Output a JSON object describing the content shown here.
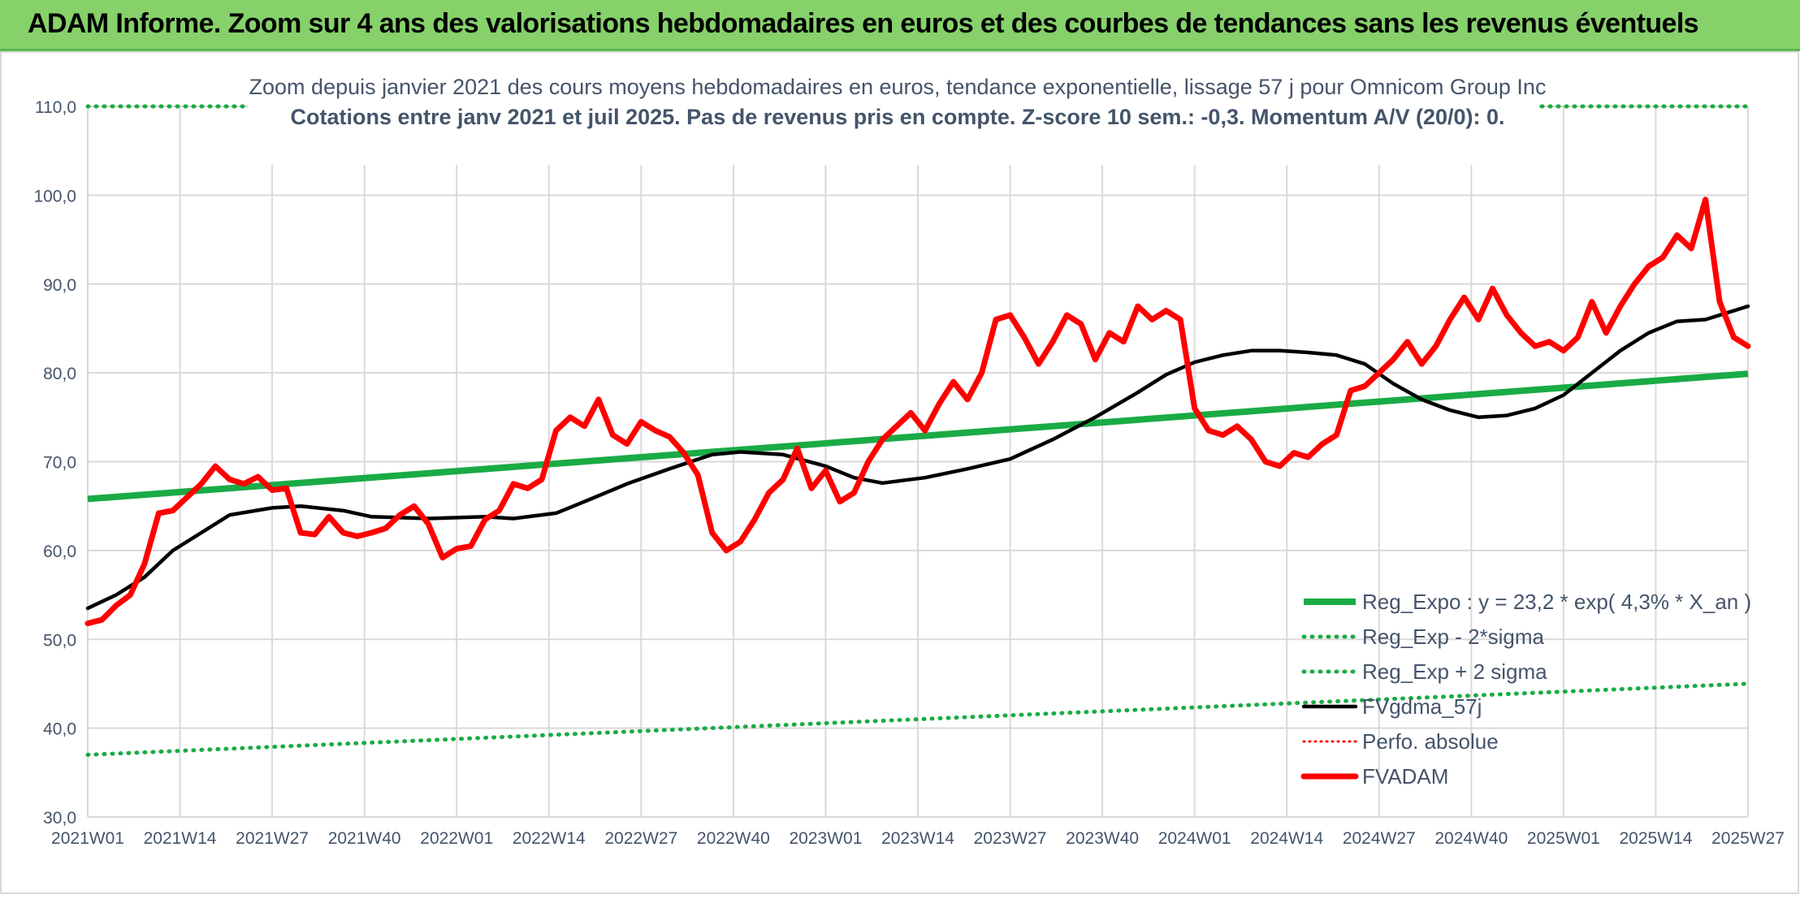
{
  "banner": {
    "title": "ADAM Informe. Zoom sur 4 ans des valorisations hebdomadaires en euros et des courbes de tendances sans les revenus éventuels"
  },
  "colors": {
    "banner": "#86d16a",
    "reg_expo": "#1aab45",
    "fvgdma": "#000000",
    "fvadam": "#ff0000",
    "grid": "#d9d9d9",
    "text": "#44546a"
  },
  "chart_data": {
    "type": "line",
    "title": "Zoom depuis janvier 2021 des cours moyens hebdomadaires en euros, tendance exponentielle, lissage 57 j pour Omnicom Group Inc",
    "subtitle": "Cotations entre janv 2021 et juil 2025. Pas de revenus pris en compte. Z-score 10 sem.: -0,3. Momentum A/V (20/0): 0.",
    "ylim": [
      30,
      110
    ],
    "yticks": [
      "30,0",
      "40,0",
      "50,0",
      "60,0",
      "70,0",
      "80,0",
      "90,0",
      "100,0",
      "110,0"
    ],
    "xticks": [
      "2021W01",
      "2021W14",
      "2021W27",
      "2021W40",
      "2022W01",
      "2022W14",
      "2022W27",
      "2022W40",
      "2023W01",
      "2023W14",
      "2023W27",
      "2023W40",
      "2024W01",
      "2024W14",
      "2024W27",
      "2024W40",
      "2025W01",
      "2025W14",
      "2025W27"
    ],
    "x_count": 235,
    "grid": true,
    "legend_position": "bottom-right",
    "series": [
      {
        "name": "Reg_Expo : y = 23,2 * exp( 4,3% *  X_an )",
        "style": "solid-thick",
        "points": [
          [
            0,
            65.8
          ],
          [
            234,
            79.9
          ]
        ]
      },
      {
        "name": "Reg_Exp - 2*sigma",
        "style": "dotted",
        "points": [
          [
            0,
            37.0
          ],
          [
            234,
            45.0
          ]
        ]
      },
      {
        "name": "Reg_Exp + 2 sigma",
        "style": "dotted",
        "points": [
          [
            0,
            110.0
          ],
          [
            234,
            110.0
          ]
        ]
      },
      {
        "name": "FVgdma_57j",
        "style": "solid",
        "points": [
          [
            0,
            53.5
          ],
          [
            4,
            55.0
          ],
          [
            8,
            57.0
          ],
          [
            12,
            60.0
          ],
          [
            16,
            62.0
          ],
          [
            20,
            64.0
          ],
          [
            26,
            64.8
          ],
          [
            30,
            65.0
          ],
          [
            36,
            64.5
          ],
          [
            40,
            63.8
          ],
          [
            48,
            63.6
          ],
          [
            56,
            63.8
          ],
          [
            60,
            63.6
          ],
          [
            66,
            64.2
          ],
          [
            70,
            65.5
          ],
          [
            76,
            67.5
          ],
          [
            82,
            69.2
          ],
          [
            88,
            70.8
          ],
          [
            92,
            71.1
          ],
          [
            98,
            70.8
          ],
          [
            104,
            69.5
          ],
          [
            108,
            68.2
          ],
          [
            112,
            67.6
          ],
          [
            118,
            68.2
          ],
          [
            124,
            69.2
          ],
          [
            130,
            70.3
          ],
          [
            136,
            72.5
          ],
          [
            142,
            75.0
          ],
          [
            148,
            77.8
          ],
          [
            152,
            79.8
          ],
          [
            156,
            81.2
          ],
          [
            160,
            82.0
          ],
          [
            164,
            82.5
          ],
          [
            168,
            82.5
          ],
          [
            172,
            82.3
          ],
          [
            176,
            82.0
          ],
          [
            180,
            81.0
          ],
          [
            184,
            78.8
          ],
          [
            188,
            77.0
          ],
          [
            192,
            75.8
          ],
          [
            196,
            75.0
          ],
          [
            200,
            75.2
          ],
          [
            204,
            76.0
          ],
          [
            208,
            77.5
          ],
          [
            212,
            80.0
          ],
          [
            216,
            82.5
          ],
          [
            220,
            84.5
          ],
          [
            224,
            85.8
          ],
          [
            228,
            86.0
          ],
          [
            232,
            87.0
          ],
          [
            234,
            87.5
          ]
        ]
      },
      {
        "name": "Perfo. absolue",
        "style": "dotted",
        "points": []
      },
      {
        "name": "FVADAM",
        "style": "solid-thick",
        "points": [
          [
            0,
            51.8
          ],
          [
            2,
            52.2
          ],
          [
            4,
            53.8
          ],
          [
            6,
            55.0
          ],
          [
            8,
            58.5
          ],
          [
            10,
            64.2
          ],
          [
            12,
            64.5
          ],
          [
            14,
            66.0
          ],
          [
            16,
            67.5
          ],
          [
            18,
            69.5
          ],
          [
            20,
            68.0
          ],
          [
            22,
            67.5
          ],
          [
            24,
            68.3
          ],
          [
            26,
            66.8
          ],
          [
            28,
            67.0
          ],
          [
            30,
            62.0
          ],
          [
            32,
            61.8
          ],
          [
            34,
            63.8
          ],
          [
            36,
            62.0
          ],
          [
            38,
            61.6
          ],
          [
            40,
            62.0
          ],
          [
            42,
            62.5
          ],
          [
            44,
            64.0
          ],
          [
            46,
            65.0
          ],
          [
            48,
            63.0
          ],
          [
            50,
            59.2
          ],
          [
            52,
            60.2
          ],
          [
            54,
            60.5
          ],
          [
            56,
            63.5
          ],
          [
            58,
            64.5
          ],
          [
            60,
            67.5
          ],
          [
            62,
            67.0
          ],
          [
            64,
            68.0
          ],
          [
            66,
            73.5
          ],
          [
            68,
            75.0
          ],
          [
            70,
            74.0
          ],
          [
            72,
            77.0
          ],
          [
            74,
            73.0
          ],
          [
            76,
            72.0
          ],
          [
            78,
            74.5
          ],
          [
            80,
            73.5
          ],
          [
            82,
            72.8
          ],
          [
            84,
            71.0
          ],
          [
            86,
            68.5
          ],
          [
            88,
            62.0
          ],
          [
            90,
            60.0
          ],
          [
            92,
            61.0
          ],
          [
            94,
            63.5
          ],
          [
            96,
            66.5
          ],
          [
            98,
            68.0
          ],
          [
            100,
            71.5
          ],
          [
            102,
            67.0
          ],
          [
            104,
            69.0
          ],
          [
            106,
            65.5
          ],
          [
            108,
            66.5
          ],
          [
            110,
            70.0
          ],
          [
            112,
            72.5
          ],
          [
            114,
            74.0
          ],
          [
            116,
            75.5
          ],
          [
            118,
            73.5
          ],
          [
            120,
            76.5
          ],
          [
            122,
            79.0
          ],
          [
            124,
            77.0
          ],
          [
            126,
            80.0
          ],
          [
            128,
            86.0
          ],
          [
            130,
            86.5
          ],
          [
            132,
            84.0
          ],
          [
            134,
            81.0
          ],
          [
            136,
            83.5
          ],
          [
            138,
            86.5
          ],
          [
            140,
            85.5
          ],
          [
            142,
            81.5
          ],
          [
            144,
            84.5
          ],
          [
            146,
            83.5
          ],
          [
            148,
            87.5
          ],
          [
            150,
            86.0
          ],
          [
            152,
            87.0
          ],
          [
            154,
            86.0
          ],
          [
            156,
            76.0
          ],
          [
            158,
            73.5
          ],
          [
            160,
            73.0
          ],
          [
            162,
            74.0
          ],
          [
            164,
            72.5
          ],
          [
            166,
            70.0
          ],
          [
            168,
            69.5
          ],
          [
            170,
            71.0
          ],
          [
            172,
            70.5
          ],
          [
            174,
            72.0
          ],
          [
            176,
            73.0
          ],
          [
            178,
            78.0
          ],
          [
            180,
            78.5
          ],
          [
            182,
            80.0
          ],
          [
            184,
            81.5
          ],
          [
            186,
            83.5
          ],
          [
            188,
            81.0
          ],
          [
            190,
            83.0
          ],
          [
            192,
            86.0
          ],
          [
            194,
            88.5
          ],
          [
            196,
            86.0
          ],
          [
            198,
            89.5
          ],
          [
            200,
            86.5
          ],
          [
            202,
            84.5
          ],
          [
            204,
            83.0
          ],
          [
            206,
            83.5
          ],
          [
            208,
            82.5
          ],
          [
            210,
            84.0
          ],
          [
            212,
            88.0
          ],
          [
            214,
            84.5
          ],
          [
            216,
            87.5
          ],
          [
            218,
            90.0
          ],
          [
            220,
            92.0
          ],
          [
            222,
            93.0
          ],
          [
            224,
            95.5
          ],
          [
            226,
            94.0
          ],
          [
            228,
            99.5
          ],
          [
            230,
            88.0
          ],
          [
            232,
            84.0
          ],
          [
            234,
            83.0
          ]
        ]
      }
    ]
  }
}
